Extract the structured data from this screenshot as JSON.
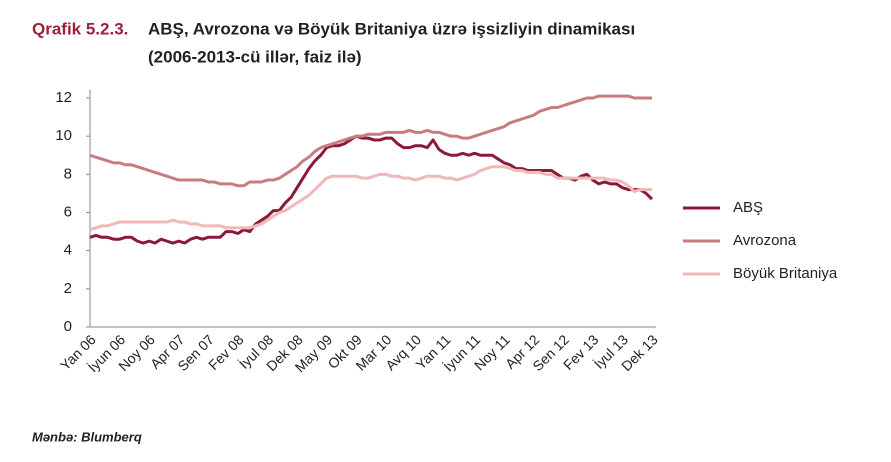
{
  "chart_data": {
    "type": "line",
    "title_label": "Qrafik 5.2.3.",
    "title": "ABŞ, Avrozona və Böyük Britaniya üzrə işsizliyin dinamikası",
    "subtitle": "(2006-2013-cü illər, faiz ilə)",
    "source": "Mənbə: Blumberq",
    "categories": [
      "Yan 06",
      null,
      null,
      null,
      null,
      "İyun 06",
      null,
      null,
      null,
      null,
      "Noy 06",
      null,
      null,
      null,
      null,
      "Apr 07",
      null,
      null,
      null,
      null,
      "Sen 07",
      null,
      null,
      null,
      null,
      "Fev 08",
      null,
      null,
      null,
      null,
      "İyul 08",
      null,
      null,
      null,
      null,
      "Dek 08",
      null,
      null,
      null,
      null,
      "May 09",
      null,
      null,
      null,
      null,
      "Okt 09",
      null,
      null,
      null,
      null,
      "Mar 10",
      null,
      null,
      null,
      null,
      "Avq 10",
      null,
      null,
      null,
      null,
      "Yan 11",
      null,
      null,
      null,
      null,
      "İyun 11",
      null,
      null,
      null,
      null,
      "Noy 11",
      null,
      null,
      null,
      null,
      "Apr 12",
      null,
      null,
      null,
      null,
      "Sen 12",
      null,
      null,
      null,
      null,
      "Fev 13",
      null,
      null,
      null,
      null,
      "İyul 13",
      null,
      null,
      null,
      null,
      "Dek 13"
    ],
    "series": [
      {
        "name": "ABŞ",
        "color": "#8b1a3a",
        "values": [
          4.7,
          4.8,
          4.7,
          4.7,
          4.6,
          4.6,
          4.7,
          4.7,
          4.5,
          4.4,
          4.5,
          4.4,
          4.6,
          4.5,
          4.4,
          4.5,
          4.4,
          4.6,
          4.7,
          4.6,
          4.7,
          4.7,
          4.7,
          5.0,
          5.0,
          4.9,
          5.1,
          5.0,
          5.4,
          5.6,
          5.8,
          6.1,
          6.1,
          6.5,
          6.8,
          7.3,
          7.8,
          8.3,
          8.7,
          9.0,
          9.4,
          9.5,
          9.5,
          9.6,
          9.8,
          10.0,
          9.9,
          9.9,
          9.8,
          9.8,
          9.9,
          9.9,
          9.6,
          9.4,
          9.4,
          9.5,
          9.5,
          9.4,
          9.8,
          9.3,
          9.1,
          9.0,
          9.0,
          9.1,
          9.0,
          9.1,
          9.0,
          9.0,
          9.0,
          8.8,
          8.6,
          8.5,
          8.3,
          8.3,
          8.2,
          8.2,
          8.2,
          8.2,
          8.2,
          8.0,
          7.8,
          7.8,
          7.7,
          7.9,
          8.0,
          7.7,
          7.5,
          7.6,
          7.5,
          7.5,
          7.3,
          7.2,
          7.2,
          7.2,
          7.0,
          6.7
        ]
      },
      {
        "name": "Avrozona",
        "color": "#c87b82",
        "values": [
          9.0,
          8.9,
          8.8,
          8.7,
          8.6,
          8.6,
          8.5,
          8.5,
          8.4,
          8.3,
          8.2,
          8.1,
          8.0,
          7.9,
          7.8,
          7.7,
          7.7,
          7.7,
          7.7,
          7.7,
          7.6,
          7.6,
          7.5,
          7.5,
          7.5,
          7.4,
          7.4,
          7.6,
          7.6,
          7.6,
          7.7,
          7.7,
          7.8,
          8.0,
          8.2,
          8.4,
          8.7,
          8.9,
          9.2,
          9.4,
          9.5,
          9.6,
          9.7,
          9.8,
          9.9,
          10.0,
          10.0,
          10.1,
          10.1,
          10.1,
          10.2,
          10.2,
          10.2,
          10.2,
          10.3,
          10.2,
          10.2,
          10.3,
          10.2,
          10.2,
          10.1,
          10.0,
          10.0,
          9.9,
          9.9,
          10.0,
          10.1,
          10.2,
          10.3,
          10.4,
          10.5,
          10.7,
          10.8,
          10.9,
          11.0,
          11.1,
          11.3,
          11.4,
          11.5,
          11.5,
          11.6,
          11.7,
          11.8,
          11.9,
          12.0,
          12.0,
          12.1,
          12.1,
          12.1,
          12.1,
          12.1,
          12.1,
          12.0,
          12.0,
          12.0,
          12.0
        ]
      },
      {
        "name": "Böyük Britaniya",
        "color": "#f0b8b8",
        "values": [
          5.1,
          5.2,
          5.3,
          5.3,
          5.4,
          5.5,
          5.5,
          5.5,
          5.5,
          5.5,
          5.5,
          5.5,
          5.5,
          5.5,
          5.6,
          5.5,
          5.5,
          5.4,
          5.4,
          5.3,
          5.3,
          5.3,
          5.3,
          5.2,
          5.2,
          5.2,
          5.2,
          5.2,
          5.3,
          5.4,
          5.6,
          5.8,
          6.0,
          6.1,
          6.3,
          6.5,
          6.7,
          6.9,
          7.2,
          7.5,
          7.8,
          7.9,
          7.9,
          7.9,
          7.9,
          7.9,
          7.8,
          7.8,
          7.9,
          8.0,
          8.0,
          7.9,
          7.9,
          7.8,
          7.8,
          7.7,
          7.8,
          7.9,
          7.9,
          7.9,
          7.8,
          7.8,
          7.7,
          7.8,
          7.9,
          8.0,
          8.2,
          8.3,
          8.4,
          8.4,
          8.4,
          8.3,
          8.2,
          8.2,
          8.1,
          8.1,
          8.1,
          8.0,
          8.0,
          7.8,
          7.8,
          7.8,
          7.8,
          7.8,
          7.8,
          7.8,
          7.8,
          7.8,
          7.7,
          7.7,
          7.6,
          7.4,
          7.1,
          7.2,
          7.2,
          7.2
        ]
      }
    ],
    "ylim": [
      0,
      12
    ],
    "yticks": [
      0,
      2,
      4,
      6,
      8,
      10,
      12
    ],
    "grid": false,
    "legend": "right"
  }
}
